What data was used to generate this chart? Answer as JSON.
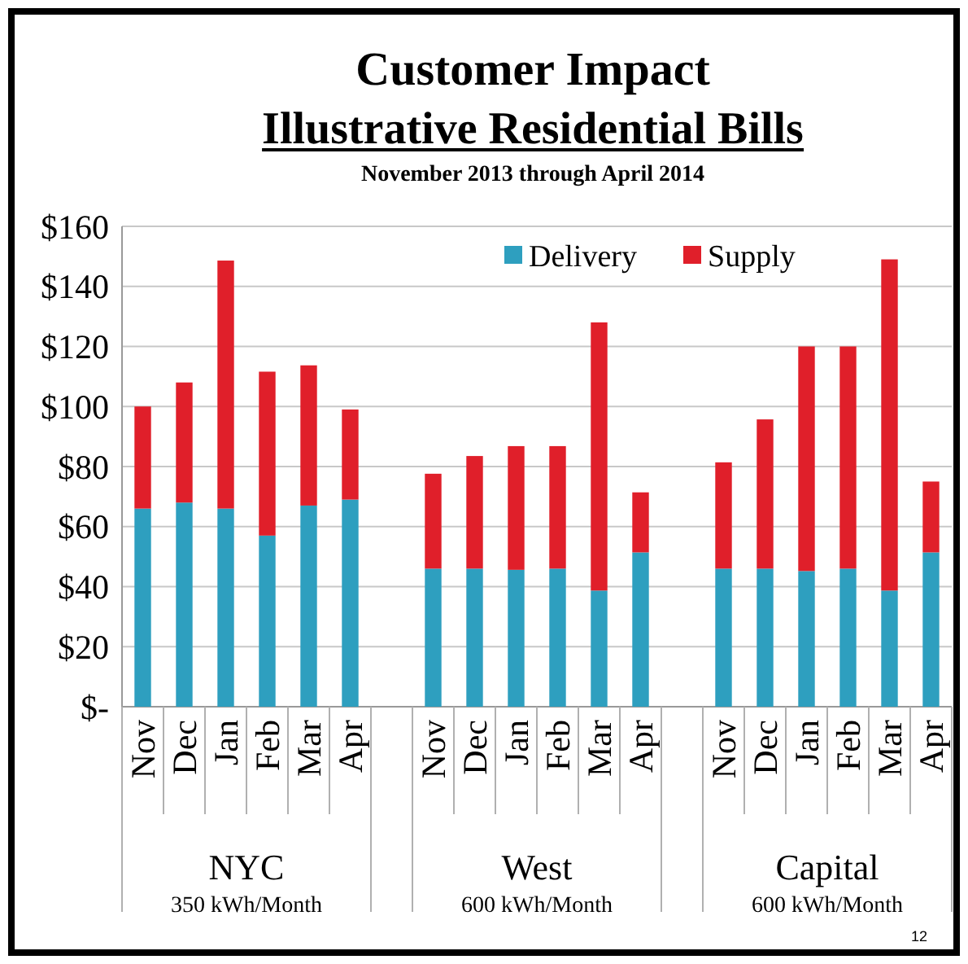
{
  "chart_data": {
    "type": "bar",
    "stacked": true,
    "title": "Customer Impact",
    "subtitle": "Illustrative Residential Bills",
    "annotations": [
      "November 2013 through April 2014",
      "NYC",
      "350 kWh/Month",
      "West",
      "600 kWh/Month",
      "Capital",
      "600 kWh/Month",
      "12"
    ],
    "categories": [
      "Nov",
      "Dec",
      "Jan",
      "Feb",
      "Mar",
      "Apr",
      null,
      "Nov",
      "Dec",
      "Jan",
      "Feb",
      "Mar",
      "Apr",
      null,
      "Nov",
      "Dec",
      "Jan",
      "Feb",
      "Mar",
      "Apr"
    ],
    "series": [
      {
        "name": "Delivery",
        "color": "#2e9fbf",
        "values": [
          66,
          68,
          66,
          57,
          67,
          69,
          null,
          46,
          46,
          45.6,
          46,
          38.7,
          51.4,
          null,
          46,
          46,
          45.2,
          46,
          38.7,
          51.4
        ]
      },
      {
        "name": "Supply",
        "color": "#e01f2a",
        "values": [
          34,
          40,
          82.6,
          54.6,
          46.7,
          30,
          null,
          31.6,
          37.5,
          41.2,
          40.8,
          89.3,
          20,
          null,
          35.4,
          49.7,
          74.8,
          74,
          110.3,
          23.6
        ]
      }
    ],
    "ylim": [
      0,
      160
    ],
    "yticks": [
      {
        "value": 0,
        "label": "$-"
      },
      {
        "value": 20,
        "label": "$20"
      },
      {
        "value": 40,
        "label": "$40"
      },
      {
        "value": 60,
        "label": "$60"
      },
      {
        "value": 80,
        "label": "$80"
      },
      {
        "value": 100,
        "label": "$100"
      },
      {
        "value": 120,
        "label": "$120"
      },
      {
        "value": 140,
        "label": "$140"
      },
      {
        "value": 160,
        "label": "$160"
      }
    ],
    "grid": "y",
    "legend": "top right"
  }
}
